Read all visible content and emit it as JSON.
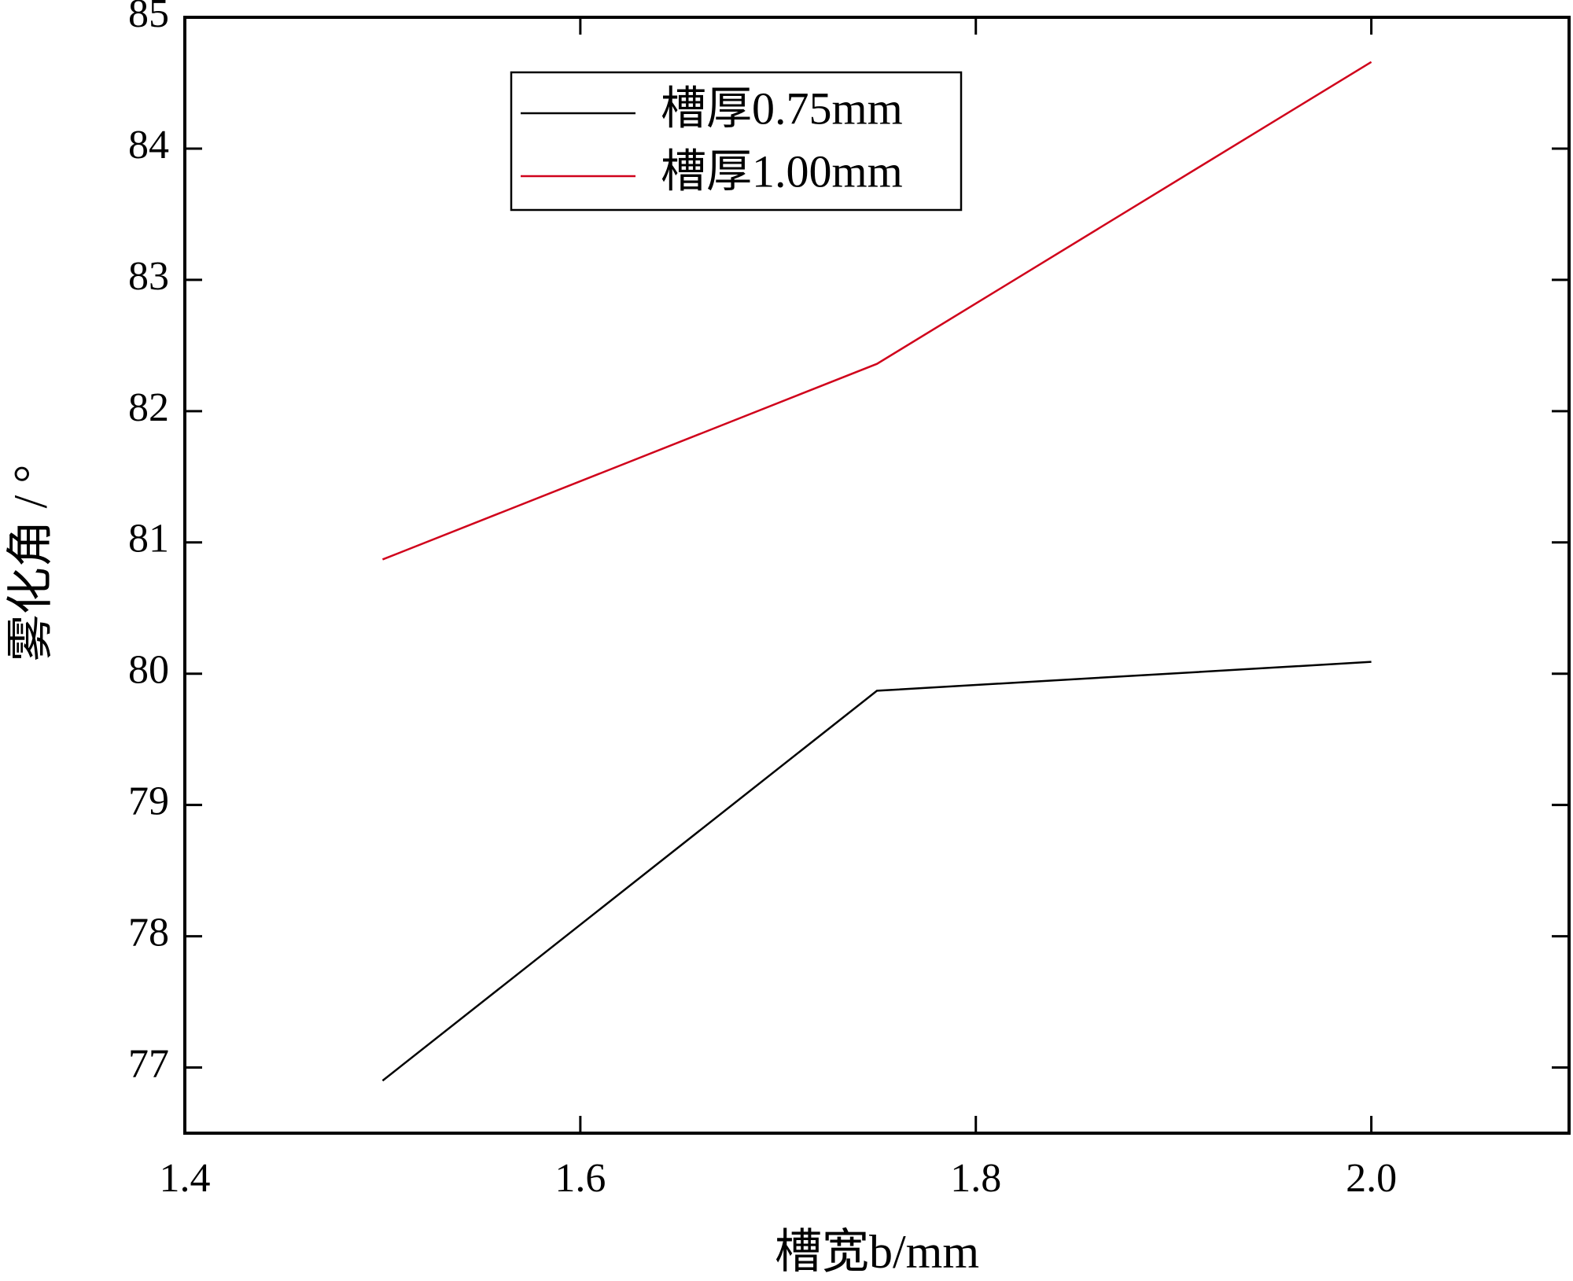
{
  "chart_data": {
    "type": "line",
    "x_label": "槽宽b/mm",
    "y_label": "雾化角 / °",
    "xlim": [
      1.4,
      2.1
    ],
    "ylim": [
      76.5,
      85
    ],
    "xticks": [
      1.4,
      1.6,
      1.8,
      {
        "value": 2,
        "label": "2.0"
      }
    ],
    "yticks": [
      77,
      78,
      79,
      80,
      81,
      82,
      83,
      84,
      85
    ],
    "legend": "upper center",
    "series": [
      {
        "name": "槽厚0.75mm",
        "color": "#000000",
        "x": [
          1.5,
          1.75,
          2.0
        ],
        "values": [
          76.9,
          79.87,
          80.09
        ]
      },
      {
        "name": "槽厚1.00mm",
        "color": "#d0021b",
        "x": [
          1.5,
          1.75,
          2.0
        ],
        "values": [
          80.87,
          82.36,
          84.66
        ]
      }
    ]
  }
}
